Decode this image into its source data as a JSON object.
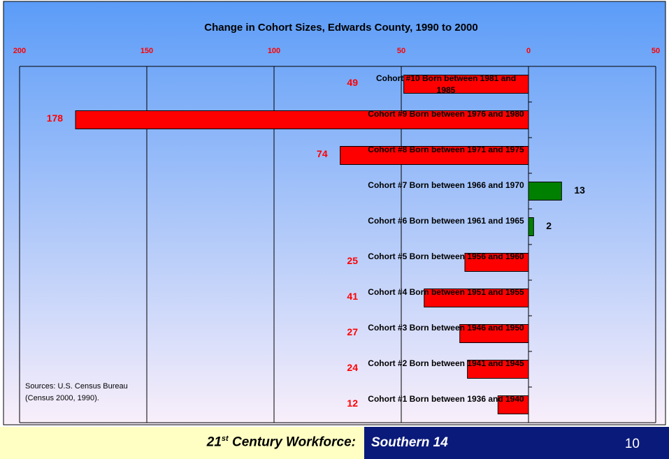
{
  "chart_data": {
    "type": "barh",
    "title": "Change in Cohort Sizes, Edwards County, 1990 to 2000",
    "categories": [
      "Cohort #10 Born between 1981 and 1985",
      "Cohort #9 Born between 1976 and 1980",
      "Cohort #8 Born between 1971 and 1975",
      "Cohort #7 Born between 1966 and 1970",
      "Cohort #6 Born between 1961 and 1965",
      "Cohort #5 Born between 1956 and 1960",
      "Cohort #4 Born between 1951 and 1955",
      "Cohort #3 Born between 1946 and 1950",
      "Cohort #2 Born between 1941 and 1945",
      "Cohort #1 Born between 1936 and 1940"
    ],
    "values": [
      -49,
      -178,
      -74,
      13,
      2,
      -25,
      -41,
      -27,
      -24,
      -12
    ],
    "value_labels": [
      "49",
      "178",
      "74",
      "13",
      "2",
      "25",
      "41",
      "27",
      "24",
      "12"
    ],
    "colors": [
      "#ff0000",
      "#ff0000",
      "#ff0000",
      "#008000",
      "#008000",
      "#ff0000",
      "#ff0000",
      "#ff0000",
      "#ff0000",
      "#ff0000"
    ],
    "xlim": [
      -200,
      50
    ],
    "xticks": [
      {
        "value": -200,
        "label": "200"
      },
      {
        "value": -150,
        "label": "150"
      },
      {
        "value": -100,
        "label": "100"
      },
      {
        "value": -50,
        "label": "50"
      },
      0,
      50
    ],
    "grid": true,
    "annotation": "Sources: U.S. Census Bureau (Census 2000, 1990)."
  },
  "footer": {
    "left_parts": [
      "21",
      "st",
      " Century Workforce:"
    ],
    "center": "Southern 14",
    "page": "10"
  }
}
